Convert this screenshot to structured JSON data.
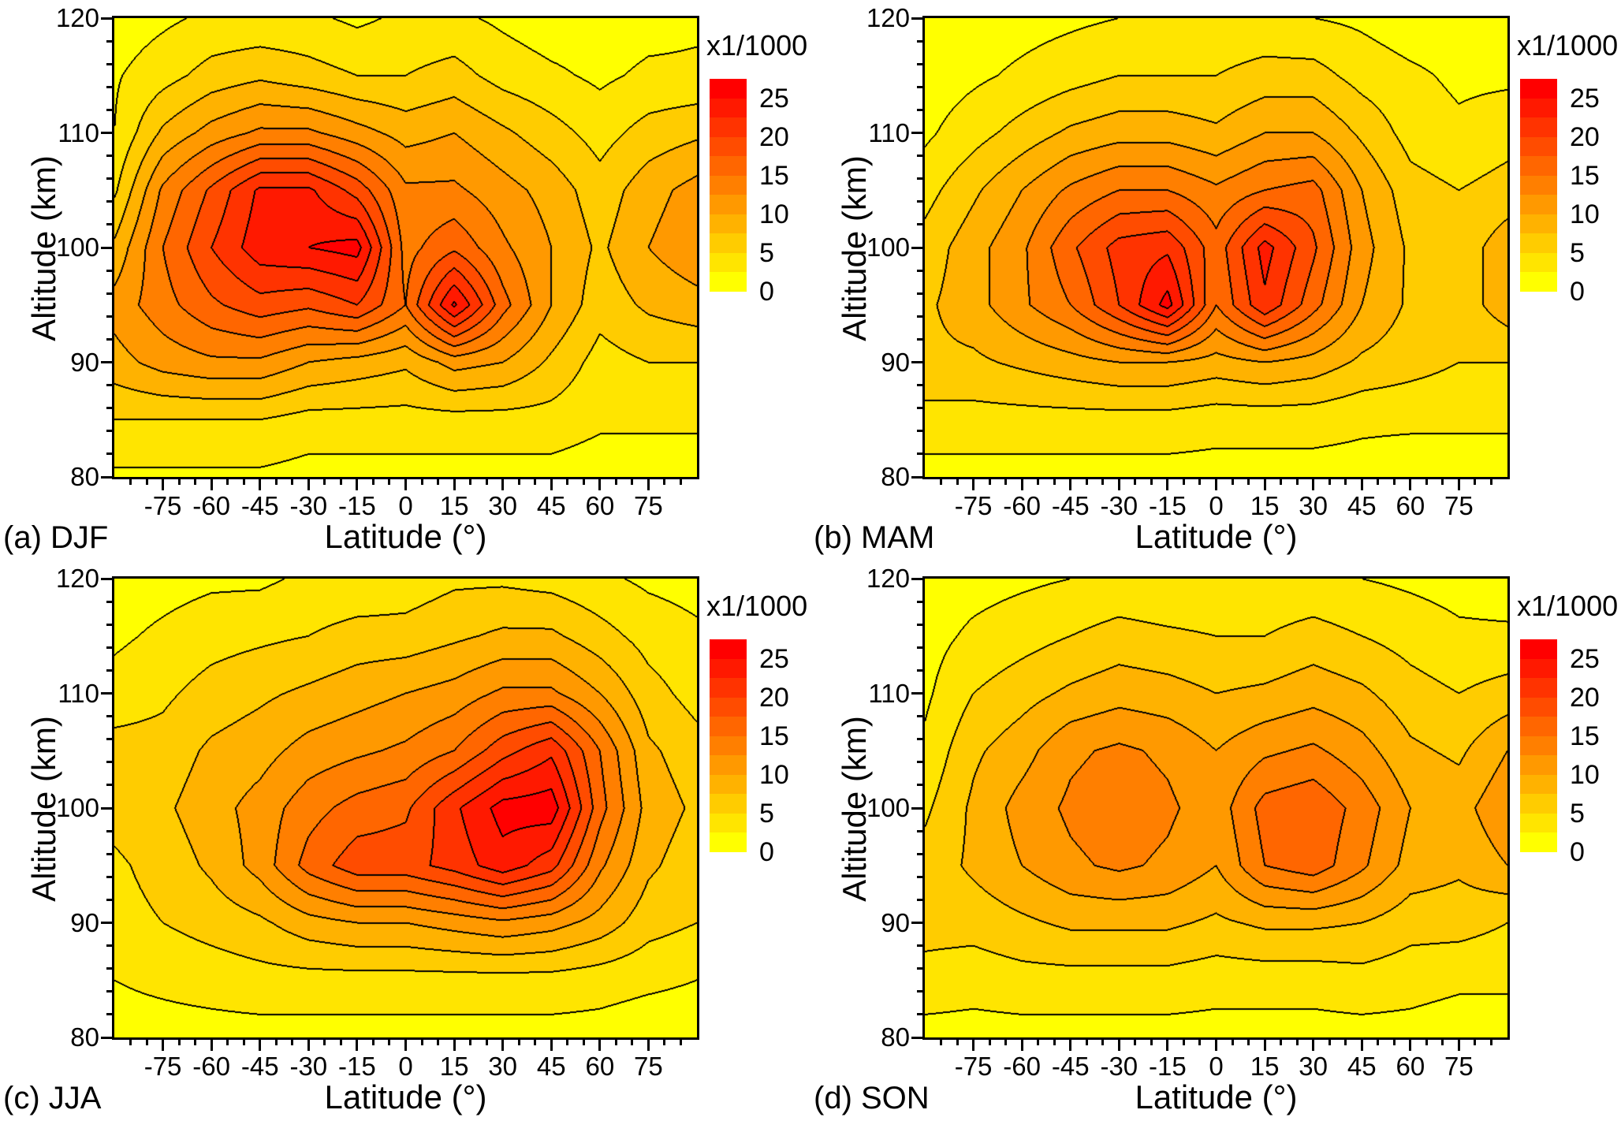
{
  "figure": {
    "background": "#ffffff"
  },
  "colorbar": {
    "title": "x1/1000",
    "tick_levels": [
      0,
      5,
      10,
      15,
      20,
      25
    ]
  },
  "contour": {
    "level_min": 0,
    "level_step": 2.5,
    "num_levels": 11,
    "palette": [
      "#FFFF00",
      "#FFE500",
      "#FFCC00",
      "#FFB200",
      "#FF9900",
      "#FF7F00",
      "#FF6600",
      "#FF4C00",
      "#FF3300",
      "#FF1900",
      "#FF0000"
    ],
    "line_color": "#000000"
  },
  "chart_data": [
    {
      "type": "heatmap",
      "panel_label": "(a) DJF",
      "season": "DJF",
      "xlabel": "Latitude (°)",
      "ylabel": "Altitude (km)",
      "xlim": [
        -90,
        90
      ],
      "ylim": [
        80,
        120
      ],
      "x_ticks": [
        -75,
        -60,
        -45,
        -30,
        -15,
        0,
        15,
        30,
        45,
        60,
        75
      ],
      "y_ticks": [
        80,
        90,
        100,
        110,
        120
      ],
      "x_minor_step": 5,
      "y_minor_step": 2,
      "x": [
        -90,
        -75,
        -60,
        -45,
        -30,
        -15,
        0,
        15,
        30,
        45,
        60,
        75,
        90
      ],
      "y": [
        80,
        85,
        90,
        95,
        100,
        105,
        110,
        115,
        120
      ],
      "values": [
        [
          2,
          2,
          2,
          2,
          1.5,
          1.5,
          1.5,
          1.5,
          1.5,
          1.5,
          1,
          1,
          1
        ],
        [
          5,
          5,
          5,
          5,
          4,
          4,
          4,
          4,
          4,
          4,
          3,
          3,
          3
        ],
        [
          9,
          11,
          12,
          12,
          10,
          9,
          8,
          11,
          10,
          7,
          4,
          5,
          5
        ],
        [
          11,
          14,
          17,
          19,
          18,
          20,
          15,
          25.5,
          16,
          10,
          6,
          8,
          9
        ],
        [
          8,
          15,
          20,
          24,
          25,
          26,
          14,
          17,
          13,
          10,
          7,
          10,
          12
        ],
        [
          4.5,
          13,
          18,
          23,
          23,
          19,
          13,
          13,
          11,
          9,
          6,
          9,
          11
        ],
        [
          2.5,
          8,
          11,
          13,
          13,
          11,
          9,
          10,
          8,
          6,
          4,
          6,
          7
        ],
        [
          2.2,
          4,
          6,
          7,
          6,
          5,
          5,
          6,
          4,
          3,
          2,
          3,
          3
        ],
        [
          1,
          2,
          3,
          3,
          3,
          2,
          3,
          3,
          2,
          1,
          1,
          1.5,
          2
        ]
      ]
    },
    {
      "type": "heatmap",
      "panel_label": "(b) MAM",
      "season": "MAM",
      "xlabel": "Latitude (°)",
      "ylabel": "Altitude (km)",
      "xlim": [
        -90,
        90
      ],
      "ylim": [
        80,
        120
      ],
      "x_ticks": [
        -75,
        -60,
        -45,
        -30,
        -15,
        0,
        15,
        30,
        45,
        60,
        75
      ],
      "y_ticks": [
        80,
        90,
        100,
        110,
        120
      ],
      "x_minor_step": 5,
      "y_minor_step": 2,
      "x": [
        -90,
        -75,
        -60,
        -45,
        -30,
        -15,
        0,
        15,
        30,
        45,
        60,
        75,
        90
      ],
      "y": [
        80,
        85,
        90,
        95,
        100,
        105,
        110,
        115,
        120
      ],
      "values": [
        [
          1.5,
          1.5,
          1.5,
          1.5,
          1.5,
          1.5,
          1.5,
          1.5,
          1.5,
          1.5,
          1,
          1,
          1
        ],
        [
          4,
          4,
          4,
          4,
          4,
          4,
          3.5,
          3.5,
          3.5,
          3,
          3,
          3,
          3
        ],
        [
          7,
          7,
          8,
          9,
          10,
          10,
          9,
          10,
          9,
          7,
          6,
          5,
          5
        ],
        [
          7,
          9,
          12,
          15,
          20,
          26,
          15,
          22,
          16,
          10,
          7,
          6,
          9
        ],
        [
          6,
          9,
          12,
          17,
          21,
          22,
          16,
          23.5,
          18,
          11,
          7,
          6,
          9
        ],
        [
          4,
          7,
          10,
          13,
          15,
          15,
          13,
          15,
          16,
          10,
          6,
          5,
          6
        ],
        [
          2,
          4,
          6,
          8,
          9,
          9,
          8,
          10,
          10,
          7,
          4,
          3,
          4
        ],
        [
          1,
          2,
          3,
          4,
          5,
          5,
          5,
          6,
          6,
          4,
          3,
          2,
          2
        ],
        [
          1,
          1,
          1.5,
          2,
          2.5,
          3,
          3,
          3,
          2.5,
          2,
          1,
          1,
          1
        ]
      ]
    },
    {
      "type": "heatmap",
      "panel_label": "(c) JJA",
      "season": "JJA",
      "xlabel": "Latitude (°)",
      "ylabel": "Altitude (km)",
      "xlim": [
        -90,
        90
      ],
      "ylim": [
        80,
        120
      ],
      "x_ticks": [
        -75,
        -60,
        -45,
        -30,
        -15,
        0,
        15,
        30,
        45,
        60,
        75
      ],
      "y_ticks": [
        80,
        90,
        100,
        110,
        120
      ],
      "x_minor_step": 5,
      "y_minor_step": 2,
      "x": [
        -90,
        -75,
        -60,
        -45,
        -30,
        -15,
        0,
        15,
        30,
        45,
        60,
        75,
        90
      ],
      "y": [
        80,
        85,
        90,
        95,
        100,
        105,
        110,
        115,
        120
      ],
      "values": [
        [
          1.5,
          1.5,
          1.5,
          1.5,
          1.5,
          1.5,
          1.5,
          1.5,
          1.5,
          1.5,
          1.5,
          1,
          1
        ],
        [
          2.5,
          3,
          3.5,
          4,
          4,
          4,
          4,
          4,
          4,
          4,
          3.5,
          3,
          2.5
        ],
        [
          4,
          5,
          6,
          7,
          9,
          10,
          10,
          11,
          12,
          11,
          9,
          6,
          5
        ],
        [
          4.5,
          6,
          8,
          11,
          16,
          19,
          19,
          21,
          24,
          21,
          13,
          8,
          6
        ],
        [
          6,
          7,
          9,
          11,
          14,
          16,
          17,
          22,
          26,
          26.5,
          16,
          9,
          7
        ],
        [
          6,
          6,
          8,
          9,
          11,
          12,
          13,
          15,
          19,
          22,
          15,
          8,
          6
        ],
        [
          3.5,
          4.5,
          6,
          7,
          8,
          9,
          10,
          11,
          13,
          13,
          10,
          6,
          4
        ],
        [
          2,
          3,
          4,
          4.5,
          5,
          6,
          6,
          7,
          8,
          8,
          6,
          4,
          3
        ],
        [
          1,
          1.5,
          2,
          2,
          3,
          3,
          3.5,
          4.5,
          4.5,
          4,
          3,
          2,
          1.5
        ]
      ]
    },
    {
      "type": "heatmap",
      "panel_label": "(d) SON",
      "season": "SON",
      "xlabel": "Latitude (°)",
      "ylabel": "Altitude (km)",
      "xlim": [
        -90,
        90
      ],
      "ylim": [
        80,
        120
      ],
      "x_ticks": [
        -75,
        -60,
        -45,
        -30,
        -15,
        0,
        15,
        30,
        45,
        60,
        75
      ],
      "y_ticks": [
        80,
        90,
        100,
        110,
        120
      ],
      "x_minor_step": 5,
      "y_minor_step": 2,
      "x": [
        -90,
        -75,
        -60,
        -45,
        -30,
        -15,
        0,
        15,
        30,
        45,
        60,
        75,
        90
      ],
      "y": [
        80,
        85,
        90,
        95,
        100,
        105,
        110,
        115,
        120
      ],
      "values": [
        [
          1.5,
          1.5,
          1.5,
          1.5,
          1.5,
          1.5,
          1.5,
          1.5,
          1.5,
          1.5,
          1.5,
          1,
          1
        ],
        [
          4,
          3.5,
          4,
          4,
          4,
          4,
          3.5,
          3.5,
          3.5,
          4,
          3.5,
          3,
          3
        ],
        [
          6,
          6,
          7,
          8,
          8,
          8,
          7,
          8,
          8,
          7.5,
          6,
          6,
          5
        ],
        [
          6,
          8,
          10,
          12,
          13,
          12,
          10,
          15,
          16.5,
          13,
          9,
          8,
          10
        ],
        [
          4.5,
          8,
          11,
          13,
          14,
          13,
          11,
          16,
          17,
          14,
          10,
          9,
          12
        ],
        [
          3,
          7,
          9,
          12,
          13,
          12,
          10,
          12,
          13,
          11,
          8,
          7,
          10
        ],
        [
          2,
          5,
          6.5,
          8,
          9,
          8.5,
          7.5,
          8,
          9,
          8,
          6,
          5,
          6
        ],
        [
          1.5,
          3,
          4,
          5,
          6,
          5.5,
          5,
          5,
          6,
          5,
          4,
          3,
          3
        ],
        [
          1,
          1.5,
          2,
          2.5,
          3,
          2.5,
          2.5,
          3,
          3,
          2.5,
          2,
          1.5,
          1
        ]
      ]
    }
  ]
}
